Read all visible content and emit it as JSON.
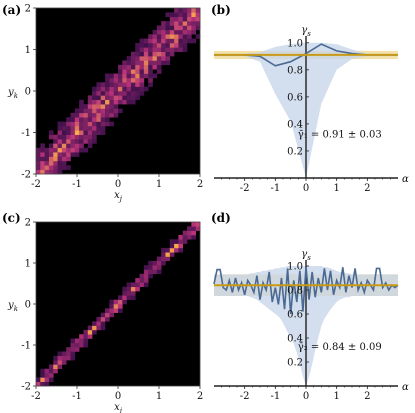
{
  "panels": [
    {
      "label": "(a)"
    },
    {
      "label": "(b)"
    },
    {
      "label": "(c)"
    },
    {
      "label": "(d)"
    }
  ],
  "colors": {
    "background": "#000000",
    "heat_low": "#2b0b44",
    "heat_mid": "#b8327a",
    "heat_high": "#fcb046",
    "line": "#4a6a94",
    "band_blue": "#c8d6ea",
    "gold": "#c79a16",
    "band_gold": "#f3dd9a"
  },
  "chart_data": [
    {
      "type": "heatmap",
      "panel": "(a)",
      "xlabel": "x_j",
      "ylabel": "y_k",
      "xticks": [
        "-2",
        "-1",
        "0",
        "1",
        "2"
      ],
      "yticks": [
        "2",
        "1",
        "0",
        "-1",
        "-2"
      ],
      "xlim": [
        -2,
        2
      ],
      "ylim": [
        -2,
        2
      ],
      "grid": false,
      "diagonal_relation": "y ≈ x",
      "spread": 0.18,
      "seed": 17
    },
    {
      "type": "line",
      "panel": "(b)",
      "ylabel": "γ_s",
      "xlabel": "α",
      "xlim": [
        -3,
        3
      ],
      "ylim": [
        0,
        1.05
      ],
      "xticks": [
        "-2",
        "-1",
        "0",
        "1",
        "2"
      ],
      "yticks": [
        "0.2",
        "0.4",
        "0.6",
        "0.8",
        "1.0"
      ],
      "annotation": "γ̄₁ = 0.91 ± 0.03",
      "mean": 0.91,
      "mean_err": 0.03,
      "x": [
        -3,
        -2.5,
        -2,
        -1.5,
        -1,
        -0.5,
        0,
        0.5,
        1,
        1.5,
        2,
        2.5,
        3
      ],
      "series": [
        {
          "values": [
            0.91,
            0.91,
            0.91,
            0.9,
            0.83,
            0.86,
            0.92,
            0.99,
            0.94,
            0.92,
            0.91,
            0.91,
            0.91
          ]
        }
      ],
      "band_upper": [
        0.92,
        0.92,
        0.92,
        0.93,
        0.97,
        0.99,
        1.0,
        1.0,
        0.99,
        0.95,
        0.92,
        0.92,
        0.92
      ],
      "band_lower": [
        0.9,
        0.9,
        0.9,
        0.86,
        0.62,
        0.42,
        0.0,
        0.55,
        0.8,
        0.88,
        0.9,
        0.9,
        0.9
      ]
    },
    {
      "type": "heatmap",
      "panel": "(c)",
      "xlabel": "x_j",
      "ylabel": "y_k",
      "xticks": [
        "-2",
        "-1",
        "0",
        "1",
        "2"
      ],
      "yticks": [
        "2",
        "1",
        "0",
        "-1",
        "-2"
      ],
      "xlim": [
        -2,
        2
      ],
      "ylim": [
        -2,
        2
      ],
      "grid": false,
      "diagonal_relation": "y ≈ x",
      "spread": 0.06,
      "seed": 91
    },
    {
      "type": "line",
      "panel": "(d)",
      "ylabel": "γ_s",
      "xlabel": "α",
      "xlim": [
        -3,
        3
      ],
      "ylim": [
        0,
        1.05
      ],
      "xticks": [
        "-2",
        "-1",
        "0",
        "1",
        "2"
      ],
      "yticks": [
        "0.2",
        "0.4",
        "0.6",
        "0.8",
        "1.0"
      ],
      "annotation": "γ̄₂ = 0.84 ± 0.09",
      "mean": 0.84,
      "mean_err": 0.09,
      "x": [
        -3,
        -2.9,
        -2.8,
        -2.7,
        -2.6,
        -2.5,
        -2.4,
        -2.3,
        -2.2,
        -2.1,
        -2.0,
        -1.9,
        -1.8,
        -1.7,
        -1.6,
        -1.5,
        -1.4,
        -1.3,
        -1.2,
        -1.1,
        -1.0,
        -0.9,
        -0.8,
        -0.7,
        -0.6,
        -0.5,
        -0.4,
        -0.3,
        -0.2,
        -0.1,
        0.0,
        0.1,
        0.2,
        0.3,
        0.4,
        0.5,
        0.6,
        0.7,
        0.8,
        0.9,
        1.0,
        1.1,
        1.2,
        1.3,
        1.4,
        1.5,
        1.6,
        1.7,
        1.8,
        1.9,
        2.0,
        2.1,
        2.2,
        2.3,
        2.4,
        2.5,
        2.6,
        2.7,
        2.8,
        2.9,
        3.0
      ],
      "series": [
        {
          "values": [
            0.85,
            0.97,
            0.97,
            0.82,
            0.8,
            0.88,
            0.78,
            0.9,
            0.8,
            0.86,
            0.76,
            0.88,
            0.84,
            0.78,
            0.92,
            0.72,
            0.86,
            0.8,
            0.95,
            0.7,
            0.82,
            0.68,
            0.9,
            0.64,
            0.98,
            0.6,
            0.88,
            0.7,
            0.96,
            0.62,
            0.99,
            0.72,
            0.95,
            0.74,
            0.9,
            0.78,
            0.98,
            0.8,
            0.96,
            0.76,
            0.88,
            0.82,
            0.99,
            0.78,
            0.92,
            0.82,
            0.98,
            0.8,
            0.86,
            0.78,
            0.88,
            0.84,
            0.8,
            0.98,
            0.98,
            0.82,
            0.86,
            0.8,
            0.84,
            0.82,
            0.84
          ]
        }
      ],
      "band_upper": [
        0.93,
        0.93,
        0.93,
        0.93,
        0.93,
        0.93,
        0.93,
        0.93,
        0.93,
        0.93,
        0.93,
        0.93,
        0.94,
        0.94,
        0.95,
        0.95,
        0.96,
        0.96,
        0.97,
        0.97,
        0.98,
        0.98,
        0.99,
        0.99,
        1.0,
        1.0,
        1.0,
        1.0,
        1.0,
        1.0,
        1.0,
        1.0,
        1.0,
        1.0,
        1.0,
        1.0,
        0.99,
        0.99,
        0.98,
        0.97,
        0.96,
        0.95,
        0.95,
        0.94,
        0.94,
        0.93,
        0.93,
        0.93,
        0.93,
        0.93,
        0.93,
        0.93,
        0.93,
        0.93,
        0.93,
        0.93,
        0.93,
        0.93,
        0.93,
        0.93,
        0.93
      ],
      "band_lower": [
        0.75,
        0.75,
        0.75,
        0.75,
        0.75,
        0.75,
        0.75,
        0.75,
        0.75,
        0.75,
        0.75,
        0.75,
        0.74,
        0.73,
        0.72,
        0.7,
        0.68,
        0.66,
        0.64,
        0.62,
        0.6,
        0.58,
        0.55,
        0.5,
        0.45,
        0.4,
        0.35,
        0.28,
        0.18,
        0.08,
        0.0,
        0.08,
        0.18,
        0.3,
        0.4,
        0.5,
        0.56,
        0.6,
        0.64,
        0.67,
        0.7,
        0.72,
        0.73,
        0.74,
        0.74,
        0.75,
        0.75,
        0.75,
        0.75,
        0.75,
        0.75,
        0.75,
        0.75,
        0.75,
        0.75,
        0.75,
        0.75,
        0.75,
        0.75,
        0.75,
        0.75
      ]
    }
  ]
}
